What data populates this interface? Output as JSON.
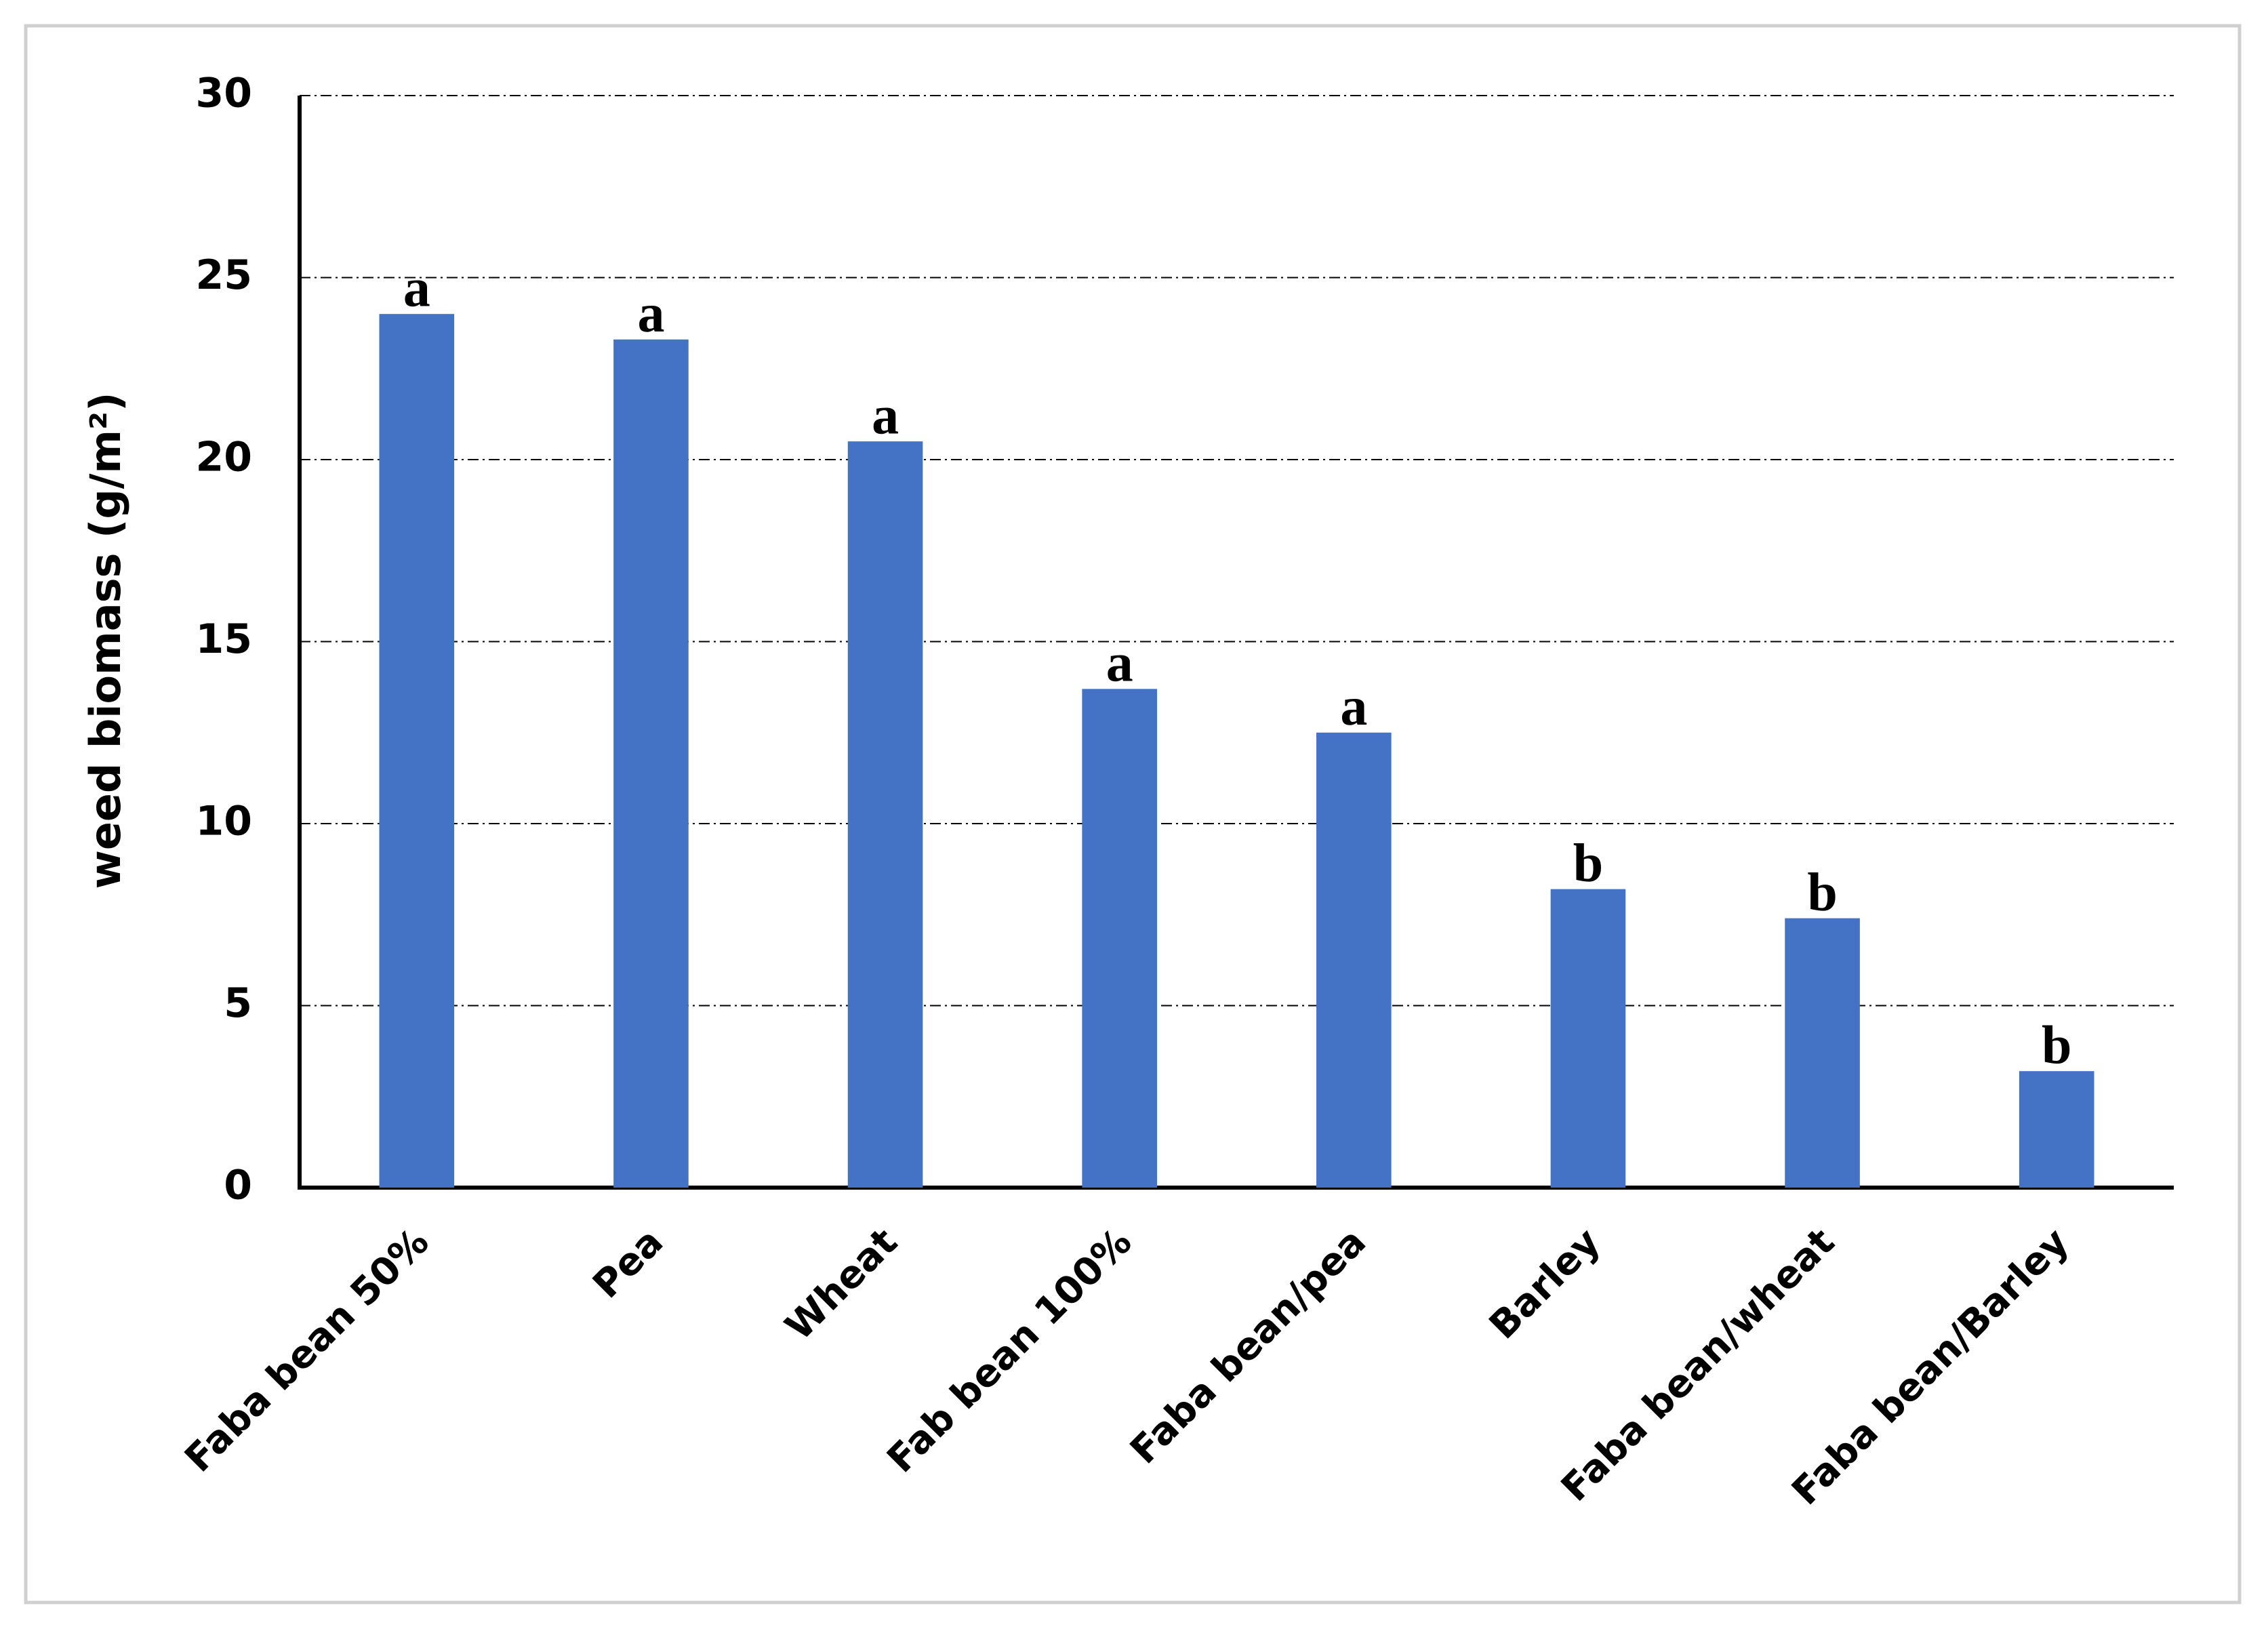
{
  "chart_data": {
    "type": "bar",
    "y_label": "weed biomass (g/m²)",
    "categories": [
      "Faba bean 50%",
      "Pea",
      "Wheat",
      "Fab bean 100%",
      "Faba bean/pea",
      "Barley",
      "Faba bean/wheat",
      "Faba bean/Barley"
    ],
    "values": [
      24.0,
      23.3,
      20.5,
      13.7,
      12.5,
      8.2,
      7.4,
      3.2
    ],
    "annotations": [
      "a",
      "a",
      "a",
      "a",
      "a",
      "b",
      "b",
      "b"
    ],
    "color": "#4472c4",
    "ylim": [
      0,
      30
    ],
    "yticks": [
      0,
      5,
      10,
      15,
      20,
      25,
      30
    ],
    "grid": true
  }
}
